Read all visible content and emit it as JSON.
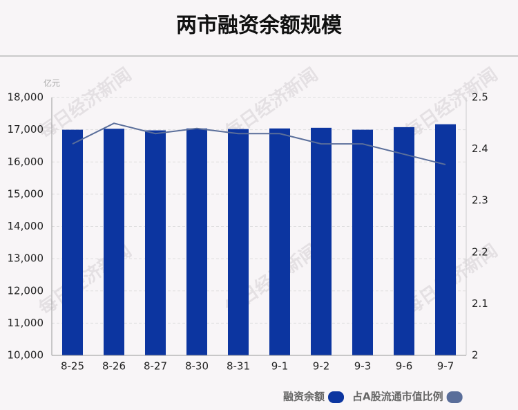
{
  "chart_data": {
    "type": "bar-line",
    "title": "两市融资余额规模",
    "y_unit": "亿元",
    "watermark": "每日经济新闻",
    "categories": [
      "8-25",
      "8-26",
      "8-27",
      "8-30",
      "8-31",
      "9-1",
      "9-2",
      "9-3",
      "9-6",
      "9-7"
    ],
    "series": [
      {
        "name": "融资余额",
        "type": "bar",
        "color": "#0c35a0",
        "values": [
          17000,
          17030,
          16980,
          17040,
          17020,
          17040,
          17060,
          17000,
          17080,
          17170
        ]
      },
      {
        "name": "占A股流通市值比例",
        "type": "line",
        "axis": "y2",
        "color": "#5a6e9a",
        "values": [
          2.41,
          2.45,
          2.43,
          2.44,
          2.43,
          2.43,
          2.41,
          2.41,
          2.39,
          2.37
        ]
      }
    ],
    "ylim": [
      10000,
      18000
    ],
    "yticks": [
      {
        "value": 10000,
        "label": "10,000"
      },
      {
        "value": 11000,
        "label": "11,000"
      },
      {
        "value": 12000,
        "label": "12,000"
      },
      {
        "value": 13000,
        "label": "13,000"
      },
      {
        "value": 14000,
        "label": "14,000"
      },
      {
        "value": 15000,
        "label": "15,000"
      },
      {
        "value": 16000,
        "label": "16,000"
      },
      {
        "value": 17000,
        "label": "17,000"
      },
      {
        "value": 18000,
        "label": "18,000"
      }
    ],
    "y2lim": [
      2,
      2.5
    ],
    "y2ticks": [
      2,
      2.1,
      2.2,
      2.3,
      2.4,
      2.5
    ],
    "grid": true
  }
}
